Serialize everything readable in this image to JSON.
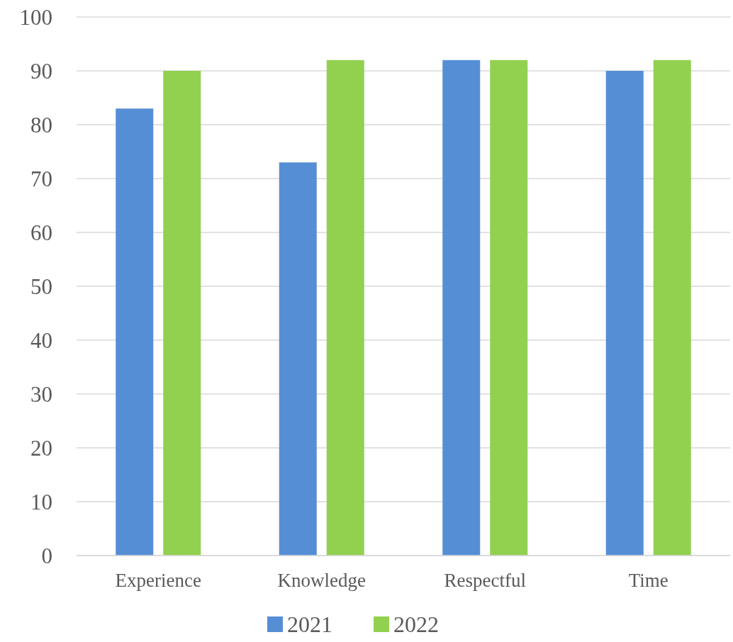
{
  "chart_data": {
    "type": "bar",
    "categories": [
      "Experience",
      "Knowledge",
      "Respectful",
      "Time"
    ],
    "series": [
      {
        "name": "2021",
        "color": "#558ed5",
        "values": [
          83,
          73,
          92,
          90
        ]
      },
      {
        "name": "2022",
        "color": "#92d050",
        "values": [
          90,
          92,
          92,
          92
        ]
      }
    ],
    "ylim": [
      0,
      100
    ],
    "yticks": [
      0,
      10,
      20,
      30,
      40,
      50,
      60,
      70,
      80,
      90,
      100
    ],
    "grid": "y",
    "legend": "bottom"
  }
}
